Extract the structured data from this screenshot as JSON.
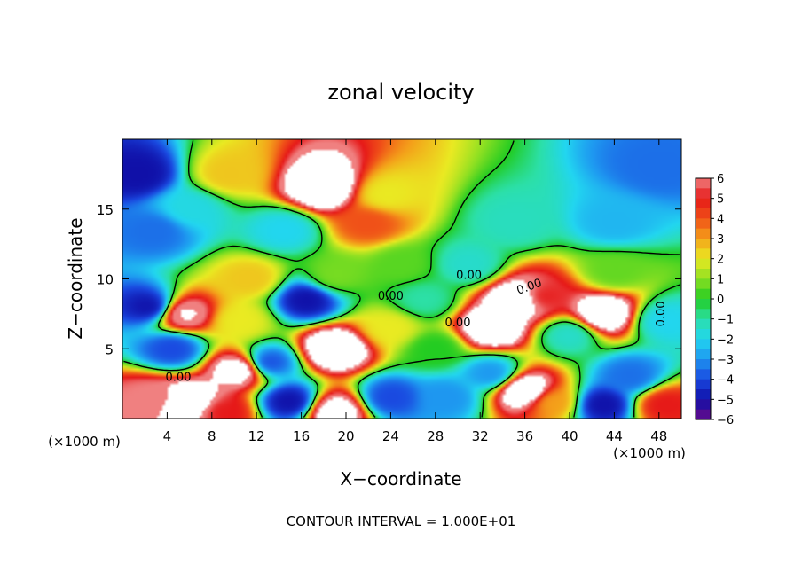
{
  "chart_data": {
    "type": "heatmap",
    "title": "zonal velocity",
    "xlabel": "X−coordinate",
    "ylabel": "Z−coordinate",
    "x_unit_left": "(×1000 m)",
    "x_unit_right": "(×1000 m)",
    "footnote": "CONTOUR INTERVAL = 1.000E+01",
    "xlim": [
      0,
      50
    ],
    "ylim": [
      0,
      20
    ],
    "x_ticks": [
      4,
      8,
      12,
      16,
      20,
      24,
      28,
      32,
      36,
      40,
      44,
      48
    ],
    "x_tick_labels": [
      "4",
      "8",
      "12",
      "16",
      "20",
      "24",
      "28",
      "32",
      "36",
      "40",
      "44",
      "48"
    ],
    "y_ticks": [
      5,
      10,
      15
    ],
    "y_tick_labels": [
      "5",
      "10",
      "15"
    ],
    "colorbar": {
      "min": -6,
      "max": 6,
      "ticks": [
        6,
        5,
        4,
        3,
        2,
        1,
        0,
        -1,
        -2,
        -3,
        -4,
        -5,
        -6
      ],
      "tick_labels": [
        "6",
        "5",
        "4",
        "3",
        "2",
        "1",
        "0",
        "−1",
        "−2",
        "−3",
        "−4",
        "−5",
        "−6"
      ],
      "colors": [
        "#6a0a8a",
        "#1010a8",
        "#1a48e0",
        "#1e96f0",
        "#22d6f0",
        "#2ce0a8",
        "#22cc22",
        "#8ee022",
        "#eaea22",
        "#f4a21a",
        "#f05018",
        "#e61818",
        "#f08080",
        "#ffffff"
      ]
    },
    "contour_labels": [
      "0.00",
      "0.00",
      "0.00",
      "0.00",
      "0.00",
      "0.00"
    ],
    "features": [
      {
        "x": 9.5,
        "y": 17.5,
        "v": 2.5
      },
      {
        "x": 18,
        "y": 16.5,
        "v": 9
      },
      {
        "x": 22,
        "y": 14,
        "v": 4
      },
      {
        "x": 23.5,
        "y": 16,
        "v": 2
      },
      {
        "x": 35,
        "y": 14,
        "v": -1.3
      },
      {
        "x": 44,
        "y": 14,
        "v": -2.5
      },
      {
        "x": 48,
        "y": 18,
        "v": -3.5
      },
      {
        "x": 1.5,
        "y": 17.5,
        "v": -5
      },
      {
        "x": 3,
        "y": 13.5,
        "v": -3.5
      },
      {
        "x": 6,
        "y": 15,
        "v": -1.8
      },
      {
        "x": 11.5,
        "y": 10,
        "v": 2.5
      },
      {
        "x": 10.5,
        "y": 7,
        "v": 2
      },
      {
        "x": 16.5,
        "y": 8.5,
        "v": -5
      },
      {
        "x": 19,
        "y": 10.2,
        "v": 0.8
      },
      {
        "x": 19,
        "y": 5,
        "v": 9
      },
      {
        "x": 24,
        "y": 6.5,
        "v": 2
      },
      {
        "x": 27,
        "y": 8.5,
        "v": -1
      },
      {
        "x": 2.5,
        "y": 8,
        "v": -5
      },
      {
        "x": 5.5,
        "y": 7.5,
        "v": 7
      },
      {
        "x": 4.5,
        "y": 5,
        "v": -4
      },
      {
        "x": 10.5,
        "y": 3.5,
        "v": 8
      },
      {
        "x": 13,
        "y": 4,
        "v": -4
      },
      {
        "x": 2.5,
        "y": 1.5,
        "v": 6
      },
      {
        "x": 6,
        "y": 1.2,
        "v": 9
      },
      {
        "x": 9,
        "y": 0.5,
        "v": 5
      },
      {
        "x": 19,
        "y": 0.5,
        "v": 8
      },
      {
        "x": 15,
        "y": 1.2,
        "v": -5
      },
      {
        "x": 24,
        "y": 1.5,
        "v": -4
      },
      {
        "x": 29,
        "y": 1.5,
        "v": -3
      },
      {
        "x": 28,
        "y": 5,
        "v": 0
      },
      {
        "x": 33,
        "y": 6.5,
        "v": 9
      },
      {
        "x": 35.5,
        "y": 8.5,
        "v": 9
      },
      {
        "x": 37.5,
        "y": 8.7,
        "v": 5
      },
      {
        "x": 33,
        "y": 3.2,
        "v": -3
      },
      {
        "x": 36,
        "y": 2,
        "v": 9
      },
      {
        "x": 38.5,
        "y": 1.2,
        "v": 3
      },
      {
        "x": 40,
        "y": 6,
        "v": -1.5
      },
      {
        "x": 43,
        "y": 7.5,
        "v": 9
      },
      {
        "x": 45.5,
        "y": 3,
        "v": -3.5
      },
      {
        "x": 43,
        "y": 1,
        "v": -5
      },
      {
        "x": 48.5,
        "y": 1,
        "v": 5
      },
      {
        "x": 48.5,
        "y": 7,
        "v": -2
      },
      {
        "x": 44,
        "y": 10.5,
        "v": 0.6
      },
      {
        "x": 31,
        "y": 11,
        "v": -1.5
      },
      {
        "x": 25,
        "y": 11,
        "v": 0.5
      },
      {
        "x": 14.5,
        "y": 13.5,
        "v": -2
      }
    ]
  }
}
